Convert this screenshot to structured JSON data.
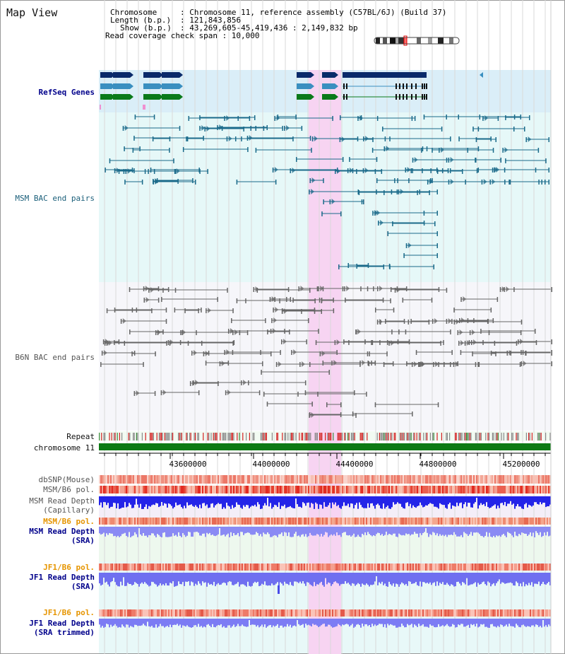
{
  "map_title": "Map View",
  "header": {
    "chromosome_key": "Chromosome",
    "chromosome_value": ": Chromosome 11, reference assembly (C57BL/6J) (Build 37)",
    "length_key": "Length (b.p.)",
    "length_value": ": 121,843,856",
    "show_key": "Show (b.p.)",
    "show_value": ": 43,269,605-45,419,436 : 2,149,832 bp",
    "coverage_line": "Read coverage check span : 10,000"
  },
  "tracks": {
    "refseq": "RefSeq Genes",
    "msm_bac": "MSM BAC end pairs",
    "b6n_bac": "B6N BAC end pairs",
    "repeat": "Repeat",
    "chromosome": "chromosome 11",
    "dbsnp": "dbSNP(Mouse)",
    "msm_b6_pol": "MSM/B6 pol.",
    "msm_depth_cap_1": "MSM Read Depth",
    "msm_depth_cap_2": "(Capillary)",
    "msm_b6_pol_2": "MSM/B6 pol.",
    "msm_depth_sra_1": "MSM Read Depth",
    "msm_depth_sra_2": "(SRA)",
    "jf1_b6_pol": "JF1/B6 pol.",
    "jf1_depth_sra_1": "JF1 Read Depth",
    "jf1_depth_sra_2": "(SRA)",
    "jf1_b6_pol_2": "JF1/B6 pol.",
    "jf1_depth_trim_1": "JF1 Read Depth",
    "jf1_depth_trim_2": "(SRA trimmed)"
  },
  "ruler": {
    "ticks": [
      "43600000",
      "44000000",
      "44400000",
      "44800000",
      "45200000"
    ]
  },
  "colors": {
    "refseq_dark": "#0a2a6a",
    "refseq_mid": "#3a8fc0",
    "refseq_green": "#0a7a1a",
    "msm_bac": "#1a6a8a",
    "b6n_bac": "#666666",
    "highlight": "#f7d4f2",
    "chromosome": "#0d7a14",
    "label_navy": "#00008b",
    "label_teal": "#1a5f7a",
    "label_gray": "#555555",
    "label_orange": "#e69500"
  }
}
